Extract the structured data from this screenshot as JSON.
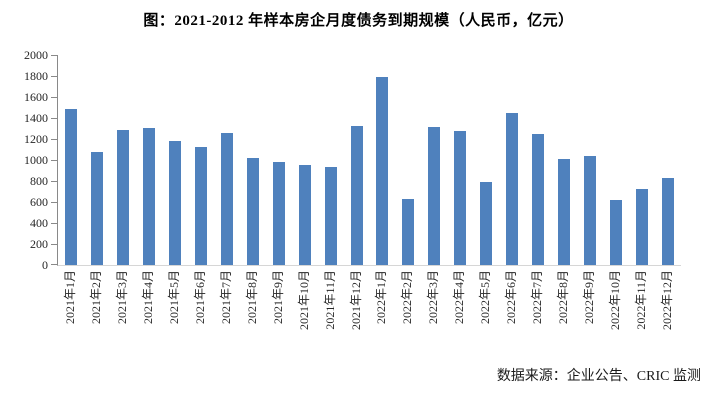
{
  "page": {
    "title": "图：2021-2012 年样本房企月度债务到期规模（人民币，亿元）",
    "source": "数据来源：企业公告、CRIC 监测"
  },
  "colors": {
    "bar": "#4F81BD",
    "axis_line": "#898989",
    "baseline": "#D6D6D6",
    "label_text": "#262626"
  },
  "chart_data": {
    "type": "bar",
    "title": "图：2021-2012 年样本房企月度债务到期规模（人民币，亿元）",
    "categories": [
      "2021年1月",
      "2021年2月",
      "2021年3月",
      "2021年4月",
      "2021年5月",
      "2021年6月",
      "2021年7月",
      "2021年8月",
      "2021年9月",
      "2021年10月",
      "2021年11月",
      "2021年12月",
      "2022年1月",
      "2022年2月",
      "2022年3月",
      "2022年4月",
      "2022年5月",
      "2022年6月",
      "2022年7月",
      "2022年8月",
      "2022年9月",
      "2022年10月",
      "2022年11月",
      "2022年12月"
    ],
    "values": [
      1490,
      1080,
      1290,
      1300,
      1180,
      1125,
      1260,
      1015,
      985,
      950,
      930,
      1320,
      1790,
      625,
      1310,
      1280,
      790,
      1450,
      1250,
      1010,
      1040,
      615,
      720,
      830
    ],
    "xlabel": "",
    "ylabel": "",
    "ylim": [
      0,
      2000
    ],
    "ytick_step": 200,
    "grid": false,
    "legend": null,
    "bar_color": "#4F81BD",
    "source_note": "数据来源：企业公告、CRIC 监测"
  }
}
